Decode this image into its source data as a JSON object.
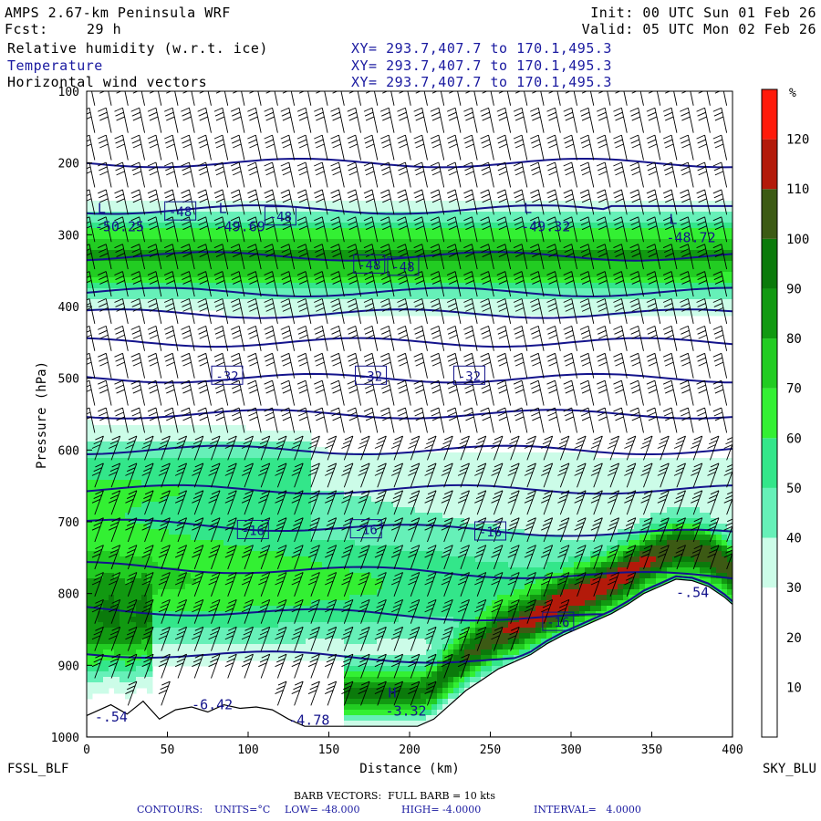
{
  "header": {
    "model": "AMPS 2.67-km Peninsula WRF",
    "init": "Init: 00 UTC Sun 01 Feb 26",
    "fcst_label": "Fcst:",
    "fcst_value": "29 h",
    "valid": "Valid: 05 UTC Mon 02 Feb 26",
    "fields": [
      {
        "name": "Relative humidity (w.r.t. ice)",
        "xy": "XY= 293.7,407.7 to 170.1,495.3"
      },
      {
        "name": "Temperature",
        "xy": "XY= 293.7,407.7 to 170.1,495.3"
      },
      {
        "name": "Horizontal wind vectors",
        "xy": "XY= 293.7,407.7 to 170.1,495.3"
      }
    ]
  },
  "colors": {
    "temp_contour": "#14148c",
    "rh_scale": [
      "#ffffff",
      "#ffffff",
      "#ffffff",
      "#ccfce8",
      "#66f0b8",
      "#33e68a",
      "#33f033",
      "#22cc22",
      "#119911",
      "#0b7a0b",
      "#3c5a14",
      "#b31a0a",
      "#ff1a0a"
    ],
    "terrain": "#ffffff"
  },
  "chart_data": {
    "type": "heatmap",
    "description_fields": [
      "Relative humidity (shaded, %)",
      "Temperature contours (°C)",
      "Wind barbs"
    ],
    "xlabel": "Distance (km)",
    "ylabel": "Pressure (hPa)",
    "xlim": [
      0,
      400
    ],
    "ylim": [
      1000,
      100
    ],
    "x_ticks": [
      0,
      50,
      100,
      150,
      200,
      250,
      300,
      350,
      400
    ],
    "y_ticks": [
      100,
      200,
      300,
      400,
      500,
      600,
      700,
      800,
      900,
      1000
    ],
    "left_endpoint": "FSSL_BLF",
    "right_endpoint": "SKY_BLU",
    "colorbar": {
      "unit": "%",
      "ticks": [
        10,
        20,
        30,
        40,
        50,
        60,
        70,
        80,
        90,
        100,
        110,
        120
      ]
    },
    "temperature_contours": {
      "low": -48.0,
      "high": -4.0,
      "interval": 4.0,
      "labels": [
        {
          "text": "-48",
          "x": 58,
          "p": 268
        },
        {
          "text": "-48",
          "x": 120,
          "p": 275
        },
        {
          "text": "-48",
          "x": 175,
          "p": 342
        },
        {
          "text": "-48",
          "x": 196,
          "p": 345
        },
        {
          "text": "-32",
          "x": 87,
          "p": 497
        },
        {
          "text": "-32",
          "x": 176,
          "p": 497
        },
        {
          "text": "-32",
          "x": 237,
          "p": 497
        },
        {
          "text": "-16",
          "x": 103,
          "p": 712
        },
        {
          "text": "-16",
          "x": 173,
          "p": 711
        },
        {
          "text": "-16",
          "x": 250,
          "p": 714
        },
        {
          "text": "-16",
          "x": 292,
          "p": 840
        }
      ]
    },
    "extrema": [
      {
        "kind": "L",
        "x": 5,
        "p": 290,
        "value": "-50.25"
      },
      {
        "kind": "L",
        "x": 80,
        "p": 290,
        "value": "-49.69"
      },
      {
        "kind": "L",
        "x": 269,
        "p": 290,
        "value": "-49.32"
      },
      {
        "kind": "L",
        "x": 359,
        "p": 305,
        "value": "-48.72"
      },
      {
        "kind": "",
        "x": 5,
        "p": 973,
        "value": "-.54"
      },
      {
        "kind": "",
        "x": 65,
        "p": 956,
        "value": "-6.42"
      },
      {
        "kind": "",
        "x": 125,
        "p": 978,
        "value": "-4.78"
      },
      {
        "kind": "H",
        "x": 185,
        "p": 965,
        "value": "-3.32"
      },
      {
        "kind": "",
        "x": 365,
        "p": 800,
        "value": "-.54"
      }
    ],
    "terrain_surface": {
      "x": [
        0,
        15,
        25,
        35,
        45,
        55,
        65,
        75,
        85,
        95,
        105,
        115,
        125,
        135,
        145,
        155,
        165,
        175,
        185,
        195,
        205,
        215,
        225,
        235,
        245,
        255,
        265,
        275,
        285,
        295,
        305,
        315,
        325,
        335,
        345,
        355,
        365,
        375,
        385,
        395,
        400
      ],
      "p": [
        970,
        955,
        968,
        950,
        975,
        962,
        958,
        965,
        955,
        960,
        958,
        962,
        975,
        985,
        985,
        985,
        985,
        985,
        985,
        985,
        985,
        975,
        955,
        935,
        920,
        905,
        895,
        885,
        870,
        858,
        848,
        838,
        828,
        815,
        800,
        790,
        780,
        782,
        790,
        805,
        815
      ]
    },
    "isotherms_p": [
      200,
      265,
      330,
      380,
      410,
      450,
      500,
      550,
      600,
      655,
      710,
      770,
      830,
      890
    ]
  },
  "footer": {
    "barb_note": "BARB VECTORS:  FULL BARB = 10 kts",
    "contours_label": "CONTOURS:",
    "units": "UNITS=°C",
    "low": "LOW= -48.000",
    "high": "HIGH= -4.0000",
    "interval": "INTERVAL=   4.0000"
  }
}
